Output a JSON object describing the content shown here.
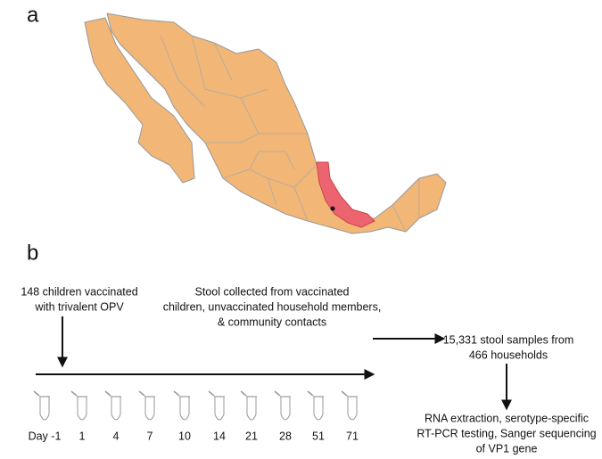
{
  "panels": {
    "a": "a",
    "b": "b"
  },
  "vaccination": {
    "lines": [
      "148 children vaccinated",
      "with trivalent OPV"
    ]
  },
  "collection": {
    "lines": [
      "Stool collected from vaccinated",
      "children, unvaccinated household members,",
      "& community contacts"
    ]
  },
  "samples": {
    "lines": [
      "15,331 stool samples from",
      "466 households"
    ]
  },
  "testing": {
    "lines": [
      "RNA extraction, serotype-specific",
      "RT-PCR testing, Sanger sequencing",
      "of VP1 gene"
    ]
  },
  "timeline": {
    "days": [
      "Day -1",
      "1",
      "4",
      "7",
      "10",
      "14",
      "21",
      "28",
      "51",
      "71"
    ]
  }
}
